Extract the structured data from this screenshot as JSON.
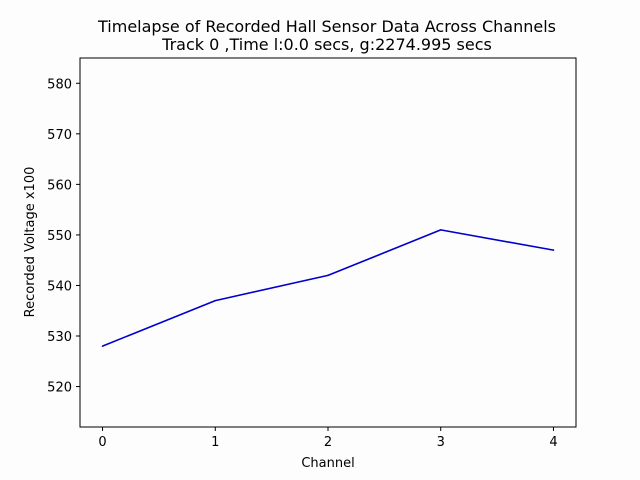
{
  "chart_data": {
    "type": "line",
    "title": "Timelapse of Recorded Hall Sensor Data Across Channels",
    "subtitle": "Track 0 ,Time l:0.0 secs, g:2274.995 secs",
    "xlabel": "Channel",
    "ylabel": "Recorded Voltage x100",
    "x": [
      0,
      1,
      2,
      3,
      4
    ],
    "series": [
      {
        "color": "#0000cc",
        "values": [
          528,
          537,
          542,
          551,
          547
        ]
      }
    ],
    "xlim": [
      -0.2,
      4.2
    ],
    "ylim": [
      512,
      585
    ],
    "xticks": [
      0,
      1,
      2,
      3,
      4
    ],
    "yticks": [
      520,
      530,
      540,
      550,
      560,
      570,
      580
    ],
    "grid": false
  }
}
